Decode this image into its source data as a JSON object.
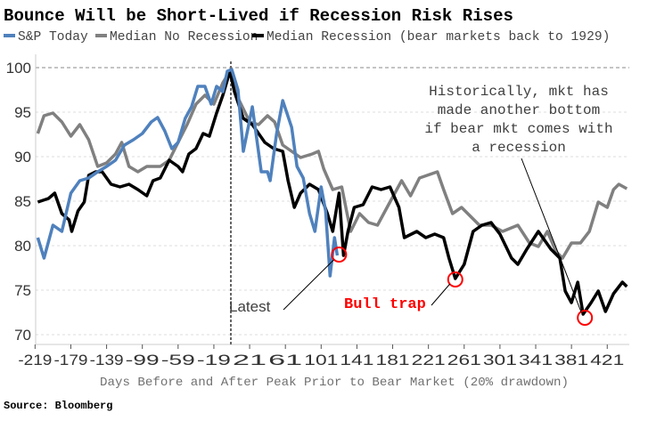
{
  "chart_data": {
    "type": "line",
    "title": "Bounce Will be Short-Lived if Recession Risk Rises",
    "xlabel": "Days Before and After Peak Prior to Bear Market (20% drawdown)",
    "ylabel": "",
    "xlim": [
      -221,
      447
    ],
    "ylim": [
      69,
      101.5
    ],
    "x_ticks": [
      -219,
      -179,
      -139,
      -99,
      -59,
      -19,
      21,
      61,
      101,
      141,
      181,
      221,
      261,
      301,
      341,
      381,
      421
    ],
    "y_ticks": [
      70,
      75,
      80,
      85,
      90,
      95,
      100
    ],
    "grid": "horizontal dashed",
    "legend_position": "top",
    "source": "Source: Bloomberg",
    "peak_marker_day": 0,
    "series": [
      {
        "name": "S&P Today",
        "color": "#4f81bd",
        "points": [
          [
            -216,
            80.9
          ],
          [
            -209,
            78.6
          ],
          [
            -199,
            82.3
          ],
          [
            -189,
            81.6
          ],
          [
            -179,
            85.9
          ],
          [
            -169,
            87.3
          ],
          [
            -159,
            87.6
          ],
          [
            -149,
            88.3
          ],
          [
            -139,
            88.9
          ],
          [
            -129,
            89.6
          ],
          [
            -119,
            91.3
          ],
          [
            -109,
            91.9
          ],
          [
            -99,
            92.6
          ],
          [
            -89,
            93.9
          ],
          [
            -82,
            94.4
          ],
          [
            -74,
            92.9
          ],
          [
            -66,
            90.9
          ],
          [
            -59,
            91.6
          ],
          [
            -51,
            94.3
          ],
          [
            -44,
            95.6
          ],
          [
            -37,
            97.9
          ],
          [
            -29,
            97.9
          ],
          [
            -22,
            95.9
          ],
          [
            -16,
            97.9
          ],
          [
            -9,
            97.3
          ],
          [
            -4,
            99.6
          ],
          [
            1,
            99.8
          ],
          [
            8,
            97.5
          ],
          [
            14,
            90.6
          ],
          [
            24,
            95.6
          ],
          [
            34,
            88.3
          ],
          [
            41,
            88.3
          ],
          [
            44,
            87.3
          ],
          [
            51,
            92.5
          ],
          [
            58,
            96.3
          ],
          [
            68,
            93.3
          ],
          [
            74,
            88.9
          ],
          [
            81,
            87.6
          ],
          [
            88,
            83.6
          ],
          [
            94,
            81.6
          ],
          [
            101,
            86.6
          ],
          [
            106,
            83.9
          ],
          [
            111,
            76.6
          ],
          [
            116,
            80.9
          ],
          [
            119,
            78.9
          ]
        ]
      },
      {
        "name": "Median No Recession",
        "color": "#808080",
        "points": [
          [
            -216,
            92.6
          ],
          [
            -209,
            94.6
          ],
          [
            -199,
            94.9
          ],
          [
            -189,
            93.9
          ],
          [
            -179,
            92.3
          ],
          [
            -169,
            93.6
          ],
          [
            -159,
            91.9
          ],
          [
            -149,
            88.9
          ],
          [
            -139,
            89.3
          ],
          [
            -129,
            90.3
          ],
          [
            -122,
            91.6
          ],
          [
            -114,
            88.9
          ],
          [
            -104,
            88.3
          ],
          [
            -94,
            88.9
          ],
          [
            -79,
            88.9
          ],
          [
            -69,
            89.6
          ],
          [
            -59,
            91.6
          ],
          [
            -49,
            93.6
          ],
          [
            -39,
            95.9
          ],
          [
            -29,
            96.9
          ],
          [
            -19,
            95.9
          ],
          [
            -9,
            98.3
          ],
          [
            -1,
            99.6
          ],
          [
            8,
            96.6
          ],
          [
            21,
            93.9
          ],
          [
            31,
            93.6
          ],
          [
            41,
            94.6
          ],
          [
            49,
            93.9
          ],
          [
            58,
            91.3
          ],
          [
            68,
            90.6
          ],
          [
            78,
            89.9
          ],
          [
            91,
            90.3
          ],
          [
            98,
            90.6
          ],
          [
            104,
            88.6
          ],
          [
            114,
            86.3
          ],
          [
            124,
            86.6
          ],
          [
            134,
            81.6
          ],
          [
            144,
            83.6
          ],
          [
            154,
            82.6
          ],
          [
            164,
            82.3
          ],
          [
            178,
            84.9
          ],
          [
            191,
            87.3
          ],
          [
            201,
            85.6
          ],
          [
            211,
            87.6
          ],
          [
            231,
            88.3
          ],
          [
            238,
            86.3
          ],
          [
            248,
            83.6
          ],
          [
            258,
            84.3
          ],
          [
            268,
            83.3
          ],
          [
            278,
            82.3
          ],
          [
            291,
            82.3
          ],
          [
            304,
            81.6
          ],
          [
            321,
            82.3
          ],
          [
            334,
            80.3
          ],
          [
            344,
            79.9
          ],
          [
            354,
            81.6
          ],
          [
            364,
            79.3
          ],
          [
            371,
            78.6
          ],
          [
            381,
            80.3
          ],
          [
            391,
            80.3
          ],
          [
            401,
            81.6
          ],
          [
            411,
            84.9
          ],
          [
            421,
            84.3
          ],
          [
            428,
            86.3
          ],
          [
            434,
            86.9
          ],
          [
            443,
            86.4
          ]
        ]
      },
      {
        "name": "Median Recession (bear markets back to 1929)",
        "color": "#000000",
        "points": [
          [
            -216,
            84.9
          ],
          [
            -204,
            85.3
          ],
          [
            -197,
            85.9
          ],
          [
            -189,
            83.6
          ],
          [
            -181,
            82.9
          ],
          [
            -178,
            81.6
          ],
          [
            -171,
            83.9
          ],
          [
            -164,
            84.9
          ],
          [
            -159,
            87.9
          ],
          [
            -151,
            88.3
          ],
          [
            -144,
            88.3
          ],
          [
            -134,
            86.9
          ],
          [
            -124,
            86.6
          ],
          [
            -114,
            86.9
          ],
          [
            -104,
            86.3
          ],
          [
            -94,
            85.6
          ],
          [
            -87,
            87.3
          ],
          [
            -79,
            87.6
          ],
          [
            -69,
            89.6
          ],
          [
            -59,
            88.9
          ],
          [
            -54,
            88.3
          ],
          [
            -47,
            90.3
          ],
          [
            -39,
            90.9
          ],
          [
            -31,
            92.6
          ],
          [
            -24,
            92.3
          ],
          [
            -16,
            94.9
          ],
          [
            -9,
            96.9
          ],
          [
            -1,
            99.6
          ],
          [
            4,
            97.3
          ],
          [
            14,
            94.3
          ],
          [
            24,
            93.6
          ],
          [
            38,
            91.6
          ],
          [
            48,
            90.9
          ],
          [
            58,
            90.6
          ],
          [
            64,
            87.3
          ],
          [
            71,
            84.3
          ],
          [
            78,
            85.9
          ],
          [
            88,
            86.9
          ],
          [
            98,
            86.3
          ],
          [
            108,
            83.6
          ],
          [
            114,
            81.6
          ],
          [
            121,
            85.9
          ],
          [
            126,
            78.9
          ],
          [
            131,
            81.6
          ],
          [
            138,
            84.3
          ],
          [
            148,
            84.6
          ],
          [
            158,
            86.6
          ],
          [
            168,
            86.3
          ],
          [
            178,
            86.6
          ],
          [
            188,
            84.3
          ],
          [
            194,
            80.9
          ],
          [
            208,
            81.6
          ],
          [
            218,
            80.9
          ],
          [
            228,
            81.3
          ],
          [
            238,
            80.9
          ],
          [
            244,
            78.6
          ],
          [
            251,
            76.3
          ],
          [
            261,
            77.9
          ],
          [
            271,
            81.6
          ],
          [
            281,
            82.3
          ],
          [
            291,
            82.6
          ],
          [
            301,
            81.3
          ],
          [
            314,
            78.6
          ],
          [
            321,
            77.9
          ],
          [
            331,
            79.6
          ],
          [
            344,
            81.6
          ],
          [
            358,
            79.6
          ],
          [
            368,
            78.6
          ],
          [
            374,
            74.9
          ],
          [
            381,
            73.6
          ],
          [
            388,
            75.9
          ],
          [
            394,
            72.3
          ],
          [
            403,
            73.6
          ],
          [
            411,
            74.9
          ],
          [
            419,
            72.6
          ],
          [
            428,
            74.6
          ],
          [
            438,
            75.9
          ],
          [
            443,
            75.4
          ]
        ]
      }
    ],
    "annotations": [
      {
        "text": "Latest",
        "color": "#404040",
        "marker_point": [
          121,
          79.0
        ]
      },
      {
        "text": "Bull trap",
        "color": "#ff0000",
        "marker_point": [
          251,
          76.2
        ]
      },
      {
        "lines": [
          "Historically, mkt has",
          "made another bottom",
          "if bear mkt comes with",
          "a recession"
        ],
        "color": "#404040",
        "marker_point": [
          396,
          71.9
        ]
      }
    ]
  }
}
